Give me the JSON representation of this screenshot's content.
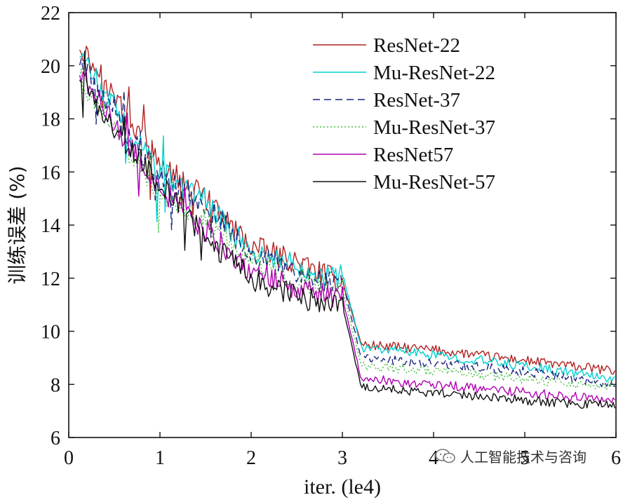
{
  "chart_data": {
    "type": "line",
    "title": "",
    "xlabel": "iter. (le4)",
    "ylabel": "训练误差 (%)",
    "xlim": [
      0,
      6
    ],
    "ylim": [
      6,
      22
    ],
    "xticks": [
      "0",
      "1",
      "2",
      "3",
      "4",
      "5",
      "6"
    ],
    "yticks": [
      "6",
      "8",
      "10",
      "12",
      "14",
      "16",
      "18",
      "20",
      "22"
    ],
    "legend_position": "top-right",
    "series": [
      {
        "name": "ResNet-22",
        "color": "#b22222",
        "dash": "solid",
        "x": [
          0.12,
          0.5,
          1.0,
          1.5,
          2.0,
          2.5,
          2.95,
          3.0,
          3.2,
          3.22,
          4.0,
          5.0,
          6.0
        ],
        "y": [
          20.8,
          18.8,
          16.3,
          15.0,
          13.2,
          12.6,
          11.9,
          11.9,
          9.6,
          9.5,
          9.3,
          8.9,
          8.5
        ]
      },
      {
        "name": "Mu-ResNet-22",
        "color": "#00d0d0",
        "dash": "solid",
        "x": [
          0.12,
          0.5,
          1.0,
          1.5,
          2.0,
          2.5,
          2.95,
          3.0,
          3.2,
          3.22,
          4.0,
          5.0,
          6.0
        ],
        "y": [
          20.5,
          18.3,
          16.0,
          14.9,
          13.0,
          12.5,
          12.0,
          12.2,
          9.5,
          9.4,
          9.1,
          8.7,
          8.2
        ]
      },
      {
        "name": "ResNet-37",
        "color": "#1a237e",
        "dash": "dashed",
        "x": [
          0.12,
          0.5,
          1.0,
          1.5,
          2.0,
          2.5,
          2.95,
          3.0,
          3.2,
          3.22,
          4.0,
          5.0,
          6.0
        ],
        "y": [
          20.2,
          18.1,
          15.8,
          14.8,
          12.9,
          12.2,
          11.8,
          11.9,
          9.1,
          9.0,
          8.8,
          8.5,
          8.0
        ]
      },
      {
        "name": "Mu-ResNet-37",
        "color": "#3fbf3f",
        "dash": "dotted",
        "x": [
          0.12,
          0.5,
          1.0,
          1.5,
          2.0,
          2.5,
          2.95,
          3.0,
          3.2,
          3.22,
          4.0,
          5.0,
          6.0
        ],
        "y": [
          19.6,
          17.5,
          15.2,
          14.2,
          12.6,
          12.0,
          11.5,
          11.6,
          8.8,
          8.7,
          8.5,
          8.2,
          7.9
        ]
      },
      {
        "name": "ResNet57",
        "color": "#b000b0",
        "dash": "solid",
        "x": [
          0.12,
          0.5,
          1.0,
          1.5,
          2.0,
          2.5,
          2.95,
          3.0,
          3.2,
          3.22,
          4.0,
          5.0,
          6.0
        ],
        "y": [
          19.8,
          17.8,
          15.4,
          13.8,
          12.3,
          11.6,
          11.2,
          11.3,
          8.3,
          8.2,
          8.0,
          7.7,
          7.4
        ]
      },
      {
        "name": "Mu-ResNet-57",
        "color": "#111111",
        "dash": "solid",
        "x": [
          0.12,
          0.5,
          1.0,
          1.5,
          2.0,
          2.5,
          2.95,
          3.0,
          3.2,
          3.22,
          4.0,
          5.0,
          6.0
        ],
        "y": [
          19.6,
          17.6,
          15.6,
          13.5,
          12.0,
          11.3,
          10.9,
          11.0,
          8.0,
          7.9,
          7.7,
          7.4,
          7.2
        ]
      }
    ]
  },
  "watermark": {
    "text": "人工智能技术与咨询",
    "icon": "wechat-icon"
  }
}
